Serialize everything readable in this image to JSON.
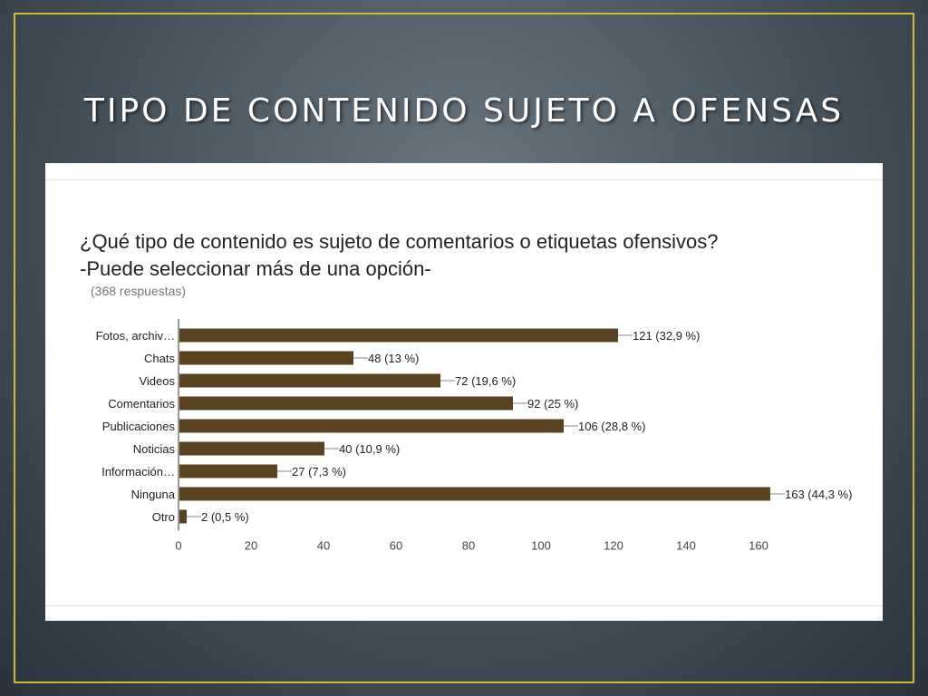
{
  "slide": {
    "title": "TIPO DE CONTENIDO SUJETO A OFENSAS"
  },
  "survey": {
    "question_line1": "¿Qué tipo de contenido es sujeto de comentarios o etiquetas ofensivos?",
    "question_line2": "-Puede seleccionar más de una opción-",
    "responses": "(368 respuestas)"
  },
  "colors": {
    "bar": "#5a4320",
    "frame": "#c9bd33"
  },
  "chart_data": {
    "type": "bar",
    "orientation": "horizontal",
    "categories": [
      "Fotos, archiv…",
      "Chats",
      "Videos",
      "Comentarios",
      "Publicaciones",
      "Noticias",
      "Información…",
      "Ninguna",
      "Otro"
    ],
    "values": [
      121,
      48,
      72,
      92,
      106,
      40,
      27,
      163,
      2
    ],
    "data_labels": [
      "121 (32,9 %)",
      "48 (13 %)",
      "72 (19,6 %)",
      "92 (25 %)",
      "106 (28,8 %)",
      "40 (10,9 %)",
      "27 (7,3 %)",
      "163 (44,3 %)",
      "2 (0,5 %)"
    ],
    "xticks": [
      0,
      20,
      40,
      60,
      80,
      100,
      120,
      140,
      160
    ],
    "xlim": [
      0,
      160
    ],
    "grid": false
  }
}
